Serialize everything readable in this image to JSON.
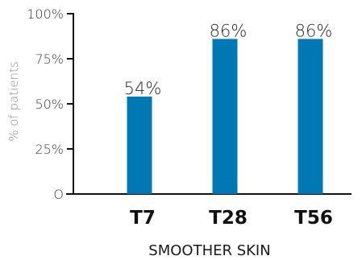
{
  "chart_data": {
    "type": "bar",
    "categories": [
      "T7",
      "T28",
      "T56"
    ],
    "values": [
      54,
      86,
      86
    ],
    "data_labels": [
      "54%",
      "86%",
      "86%"
    ],
    "ylabel": "% of patients",
    "xlabel": "SMOOTHER SKIN",
    "ylim": [
      0,
      100
    ],
    "yticks": [
      0,
      25,
      50,
      75,
      100
    ],
    "ytick_labels": [
      "O",
      "25%",
      "50%",
      "75%",
      "100%"
    ],
    "grid": false,
    "bar_color": "#0078b4",
    "axis_color": "#111111"
  }
}
